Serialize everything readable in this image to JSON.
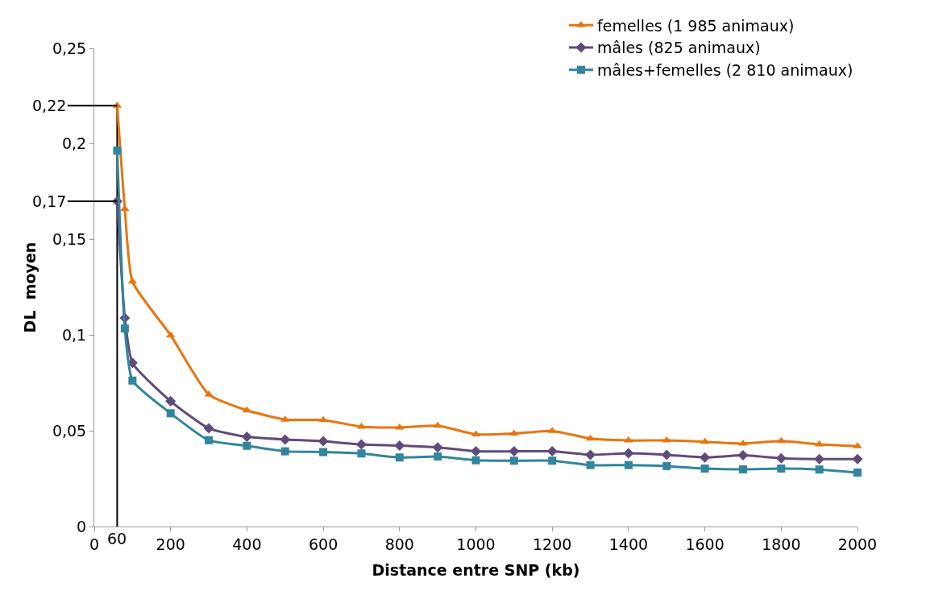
{
  "chart_data": {
    "type": "line",
    "xlabel": "Distance entre SNP (kb)",
    "ylabel": "DL  moyen",
    "x": [
      60,
      80,
      100,
      200,
      300,
      400,
      500,
      600,
      700,
      800,
      900,
      1000,
      1100,
      1200,
      1300,
      1400,
      1500,
      1600,
      1700,
      1800,
      1900,
      2000
    ],
    "series": [
      {
        "name": "femelles (1 985 animaux)",
        "color": "#e8750e",
        "marker": "triangle",
        "values": [
          0.22,
          0.166,
          0.128,
          0.1,
          0.069,
          0.0607,
          0.0559,
          0.0557,
          0.0522,
          0.0518,
          0.0527,
          0.0482,
          0.0486,
          0.05,
          0.046,
          0.045,
          0.045,
          0.0443,
          0.0434,
          0.0447,
          0.0429,
          0.042
        ]
      },
      {
        "name": "mâles (825 animaux)",
        "color": "#604a7b",
        "marker": "diamond",
        "values": [
          0.17,
          0.109,
          0.0855,
          0.0655,
          0.0513,
          0.0469,
          0.0455,
          0.0446,
          0.0429,
          0.0423,
          0.0414,
          0.0393,
          0.0393,
          0.0393,
          0.0375,
          0.0383,
          0.0375,
          0.0361,
          0.0372,
          0.0357,
          0.0353,
          0.0353
        ]
      },
      {
        "name": "mâles+femelles (2 810 animaux)",
        "color": "#31859c",
        "marker": "square",
        "values": [
          0.1965,
          0.1035,
          0.0763,
          0.0592,
          0.0451,
          0.0422,
          0.0393,
          0.0389,
          0.0382,
          0.0361,
          0.0366,
          0.0346,
          0.0344,
          0.0344,
          0.0321,
          0.0321,
          0.0316,
          0.0303,
          0.0299,
          0.0303,
          0.0298,
          0.0282
        ]
      }
    ],
    "xlim": [
      0,
      2000
    ],
    "xticks": [
      0,
      200,
      400,
      600,
      800,
      1000,
      1200,
      1400,
      1600,
      1800,
      2000
    ],
    "ylim": [
      0,
      0.25
    ],
    "yticks": [
      {
        "value": 0,
        "label": "0"
      },
      {
        "value": 0.05,
        "label": "0,05"
      },
      {
        "value": 0.1,
        "label": "0,1"
      },
      {
        "value": 0.15,
        "label": "0,15"
      },
      {
        "value": 0.2,
        "label": "0,2"
      },
      {
        "value": 0.25,
        "label": "0,25"
      }
    ],
    "ref_lines": [
      {
        "axis": "x",
        "value": 60,
        "label": "60",
        "color": "#000000"
      },
      {
        "axis": "y",
        "value": 0.22,
        "label": "0,22",
        "color": "#000000"
      },
      {
        "axis": "y",
        "value": 0.17,
        "label": "0,17",
        "color": "#000000"
      }
    ],
    "grid": false,
    "legend": "top right",
    "line_style": "solid"
  }
}
